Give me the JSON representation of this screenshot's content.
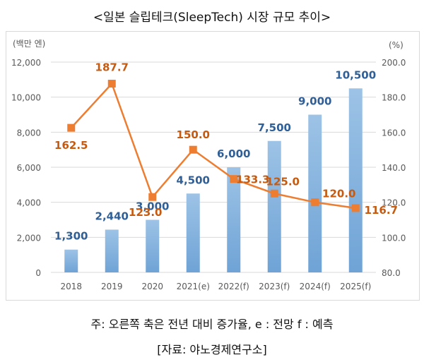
{
  "title": "<일본 슬립테크(SleepTech) 시장 규모 추이>",
  "footnote": "주: 오른쪽 축은 전년 대비 증가율, e : 전망 f : 예측",
  "source": "[자료: 야노경제연구소]",
  "chart_data": {
    "type": "bar",
    "categories": [
      "2018",
      "2019",
      "2020",
      "2021(e)",
      "2022(f)",
      "2023(f)",
      "2024(f)",
      "2025(f)"
    ],
    "series": [
      {
        "name": "시장 규모",
        "type": "bar",
        "axis": "left",
        "values": [
          1300,
          2440,
          3000,
          4500,
          6000,
          7500,
          9000,
          10500
        ],
        "labels": [
          "1,300",
          "2,440",
          "3,000",
          "4,500",
          "6,000",
          "7,500",
          "9,000",
          "10,500"
        ]
      },
      {
        "name": "전년 대비 증가율",
        "type": "line",
        "axis": "right",
        "values": [
          162.5,
          187.7,
          123.0,
          150.0,
          133.3,
          125.0,
          120.0,
          116.7
        ],
        "labels": [
          "162.5",
          "187.7",
          "123.0",
          "150.0",
          "133.3",
          "125.0",
          "120.0",
          "116.7"
        ]
      }
    ],
    "ylabel_left": "(백만 엔)",
    "ylabel_right": "(%)",
    "ylim_left": [
      0,
      12000
    ],
    "ylim_right": [
      80.0,
      200.0
    ],
    "yticks_left": [
      "0",
      "2,000",
      "4,000",
      "6,000",
      "8,000",
      "10,000",
      "12,000"
    ],
    "yticks_right": [
      "80.0",
      "100.0",
      "120.0",
      "140.0",
      "160.0",
      "180.0",
      "200.0"
    ],
    "grid": true,
    "colors": {
      "bar_top": "#9dc3e6",
      "bar_bottom": "#6fa3d6",
      "bar_label": "#2f5f96",
      "line": "#ed7d31",
      "line_label": "#c55a11",
      "grid": "#d9d9d9",
      "axis_text": "#595959"
    }
  }
}
